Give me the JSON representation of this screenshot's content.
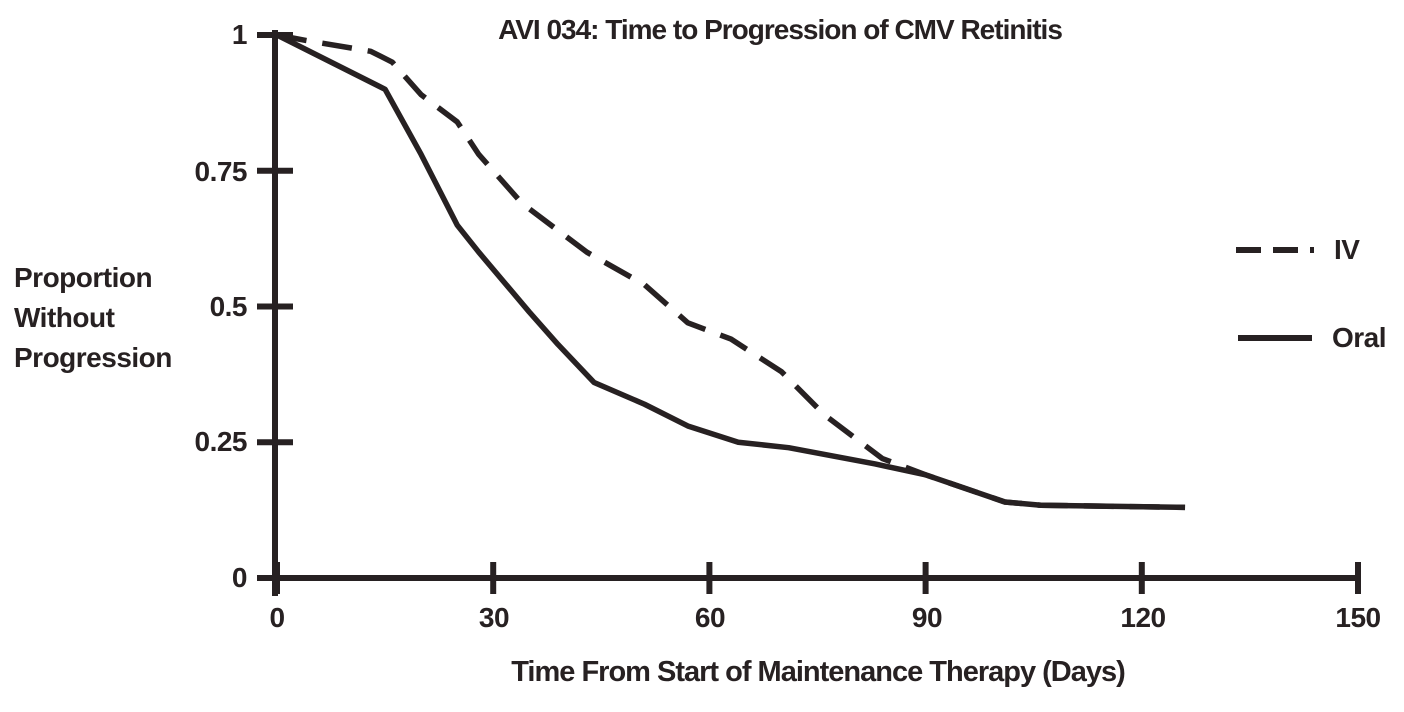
{
  "title": "AVI 034: Time to Progression of CMV Retinitis",
  "colors": {
    "ink": "#272122",
    "background": "#ffffff"
  },
  "y_axis": {
    "label_lines": [
      "Proportion",
      "Without",
      "Progression"
    ],
    "tick_labels": [
      "1",
      "0.75",
      "0.5",
      "0.25",
      "0"
    ]
  },
  "x_axis": {
    "title": "Time From Start of Maintenance Therapy (Days)",
    "tick_labels": [
      "0",
      "30",
      "60",
      "90",
      "120",
      "150"
    ]
  },
  "legend": {
    "iv_label": "IV",
    "oral_label": "Oral"
  },
  "chart_data": {
    "type": "line",
    "title": "AVI 034: Time to Progression of CMV Retinitis",
    "xlabel": "Time From Start of Maintenance Therapy (Days)",
    "ylabel": "Proportion Without Progression",
    "xlim": [
      0,
      150
    ],
    "ylim": [
      0,
      1
    ],
    "x_ticks": [
      0,
      30,
      60,
      90,
      120,
      150
    ],
    "y_ticks": [
      0,
      0.25,
      0.5,
      0.75,
      1
    ],
    "grid": false,
    "legend_position": "right",
    "series": [
      {
        "name": "IV",
        "line_style": "dashed",
        "points": [
          [
            0,
            1.0
          ],
          [
            4,
            0.99
          ],
          [
            13,
            0.97
          ],
          [
            16,
            0.95
          ],
          [
            20,
            0.89
          ],
          [
            25,
            0.84
          ],
          [
            28,
            0.78
          ],
          [
            34,
            0.69
          ],
          [
            43,
            0.6
          ],
          [
            51,
            0.54
          ],
          [
            57,
            0.47
          ],
          [
            63,
            0.44
          ],
          [
            70,
            0.38
          ],
          [
            76,
            0.3
          ],
          [
            84,
            0.22
          ],
          [
            90,
            0.19
          ],
          [
            101,
            0.14
          ],
          [
            106,
            0.134
          ],
          [
            126,
            0.13
          ]
        ]
      },
      {
        "name": "Oral",
        "line_style": "solid",
        "points": [
          [
            0,
            1.0
          ],
          [
            15,
            0.9
          ],
          [
            20,
            0.78
          ],
          [
            25,
            0.65
          ],
          [
            28,
            0.6
          ],
          [
            35,
            0.49
          ],
          [
            39,
            0.43
          ],
          [
            44,
            0.36
          ],
          [
            51,
            0.32
          ],
          [
            57,
            0.28
          ],
          [
            64,
            0.25
          ],
          [
            71,
            0.24
          ],
          [
            83,
            0.21
          ],
          [
            90,
            0.19
          ],
          [
            101,
            0.14
          ],
          [
            106,
            0.134
          ],
          [
            126,
            0.13
          ]
        ]
      }
    ]
  }
}
